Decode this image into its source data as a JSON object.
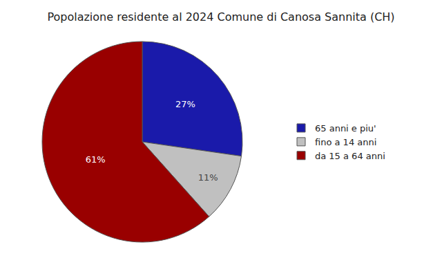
{
  "chart_data": {
    "type": "pie",
    "title": "Popolazione residente al 2024 Comune di Canosa Sannita (CH)",
    "categories": [
      "65 anni e piu'",
      "fino a 14 anni",
      "da 15 a 64 anni"
    ],
    "values": [
      27,
      11,
      61
    ],
    "value_labels": [
      "27%",
      "11%",
      "61%"
    ],
    "colors": [
      "#1a1aaa",
      "#c0c0c0",
      "#990000"
    ],
    "data_labels": true,
    "legend": "right"
  }
}
